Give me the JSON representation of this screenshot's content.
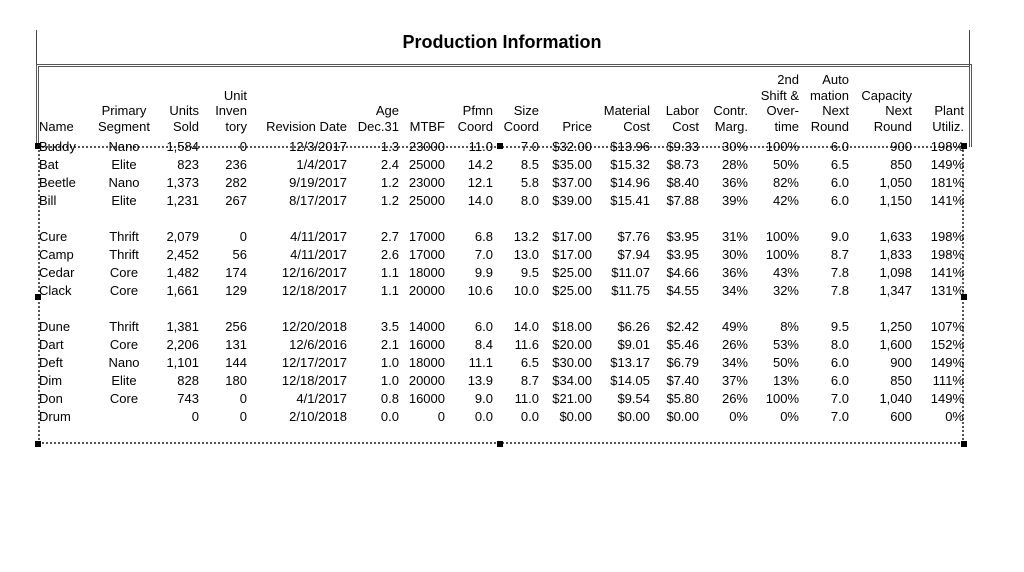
{
  "title": "Production Information",
  "columns": [
    [
      "Name"
    ],
    [
      "Primary",
      "Segment"
    ],
    [
      "Units",
      "Sold"
    ],
    [
      "Unit",
      "Inven",
      "tory"
    ],
    [
      "Revision Date"
    ],
    [
      "Age",
      "Dec.31"
    ],
    [
      "MTBF"
    ],
    [
      "Pfmn",
      "Coord"
    ],
    [
      "Size",
      "Coord"
    ],
    [
      "Price"
    ],
    [
      "Material",
      "Cost"
    ],
    [
      "Labor",
      "Cost"
    ],
    [
      "Contr.",
      "Marg."
    ],
    [
      "2nd",
      "Shift &",
      "Over-",
      "time"
    ],
    [
      "Auto",
      "mation",
      "Next",
      "Round"
    ],
    [
      "Capacity",
      "Next",
      "Round"
    ],
    [
      "Plant",
      "Utiliz."
    ]
  ],
  "groups": [
    {
      "rows": [
        [
          "Buddy",
          "Nano",
          "1,584",
          "0",
          "12/3/2017",
          "1.3",
          "23000",
          "11.0",
          "7.0",
          "$32.00",
          "$13.96",
          "$9.33",
          "30%",
          "100%",
          "6.0",
          "900",
          "198%"
        ],
        [
          "Bat",
          "Elite",
          "823",
          "236",
          "1/4/2017",
          "2.4",
          "25000",
          "14.2",
          "8.5",
          "$35.00",
          "$15.32",
          "$8.73",
          "28%",
          "50%",
          "6.5",
          "850",
          "149%"
        ],
        [
          "Beetle",
          "Nano",
          "1,373",
          "282",
          "9/19/2017",
          "1.2",
          "23000",
          "12.1",
          "5.8",
          "$37.00",
          "$14.96",
          "$8.40",
          "36%",
          "82%",
          "6.0",
          "1,050",
          "181%"
        ],
        [
          "Bill",
          "Elite",
          "1,231",
          "267",
          "8/17/2017",
          "1.2",
          "25000",
          "14.0",
          "8.0",
          "$39.00",
          "$15.41",
          "$7.88",
          "39%",
          "42%",
          "6.0",
          "1,150",
          "141%"
        ]
      ]
    },
    {
      "rows": [
        [
          "Cure",
          "Thrift",
          "2,079",
          "0",
          "4/11/2017",
          "2.7",
          "17000",
          "6.8",
          "13.2",
          "$17.00",
          "$7.76",
          "$3.95",
          "31%",
          "100%",
          "9.0",
          "1,633",
          "198%"
        ],
        [
          "Camp",
          "Thrift",
          "2,452",
          "56",
          "4/11/2017",
          "2.6",
          "17000",
          "7.0",
          "13.0",
          "$17.00",
          "$7.94",
          "$3.95",
          "30%",
          "100%",
          "8.7",
          "1,833",
          "198%"
        ],
        [
          "Cedar",
          "Core",
          "1,482",
          "174",
          "12/16/2017",
          "1.1",
          "18000",
          "9.9",
          "9.5",
          "$25.00",
          "$11.07",
          "$4.66",
          "36%",
          "43%",
          "7.8",
          "1,098",
          "141%"
        ],
        [
          "Clack",
          "Core",
          "1,661",
          "129",
          "12/18/2017",
          "1.1",
          "20000",
          "10.6",
          "10.0",
          "$25.00",
          "$11.75",
          "$4.55",
          "34%",
          "32%",
          "7.8",
          "1,347",
          "131%"
        ]
      ]
    },
    {
      "rows": [
        [
          "Dune",
          "Thrift",
          "1,381",
          "256",
          "12/20/2018",
          "3.5",
          "14000",
          "6.0",
          "14.0",
          "$18.00",
          "$6.26",
          "$2.42",
          "49%",
          "8%",
          "9.5",
          "1,250",
          "107%"
        ],
        [
          "Dart",
          "Core",
          "2,206",
          "131",
          "12/6/2016",
          "2.1",
          "16000",
          "8.4",
          "11.6",
          "$20.00",
          "$9.01",
          "$5.46",
          "26%",
          "53%",
          "8.0",
          "1,600",
          "152%"
        ],
        [
          "Deft",
          "Nano",
          "1,101",
          "144",
          "12/17/2017",
          "1.0",
          "18000",
          "11.1",
          "6.5",
          "$30.00",
          "$13.17",
          "$6.79",
          "34%",
          "50%",
          "6.0",
          "900",
          "149%"
        ],
        [
          "Dim",
          "Elite",
          "828",
          "180",
          "12/18/2017",
          "1.0",
          "20000",
          "13.9",
          "8.7",
          "$34.00",
          "$14.05",
          "$7.40",
          "37%",
          "13%",
          "6.0",
          "850",
          "111%"
        ],
        [
          "Don",
          "Core",
          "743",
          "0",
          "4/1/2017",
          "0.8",
          "16000",
          "9.0",
          "11.0",
          "$21.00",
          "$9.54",
          "$5.80",
          "26%",
          "100%",
          "7.0",
          "1,040",
          "149%"
        ],
        [
          "Drum",
          "",
          "0",
          "0",
          "2/10/2018",
          "0.0",
          "0",
          "0.0",
          "0.0",
          "$0.00",
          "$0.00",
          "$0.00",
          "0%",
          "0%",
          "7.0",
          "600",
          "0%"
        ]
      ]
    }
  ]
}
